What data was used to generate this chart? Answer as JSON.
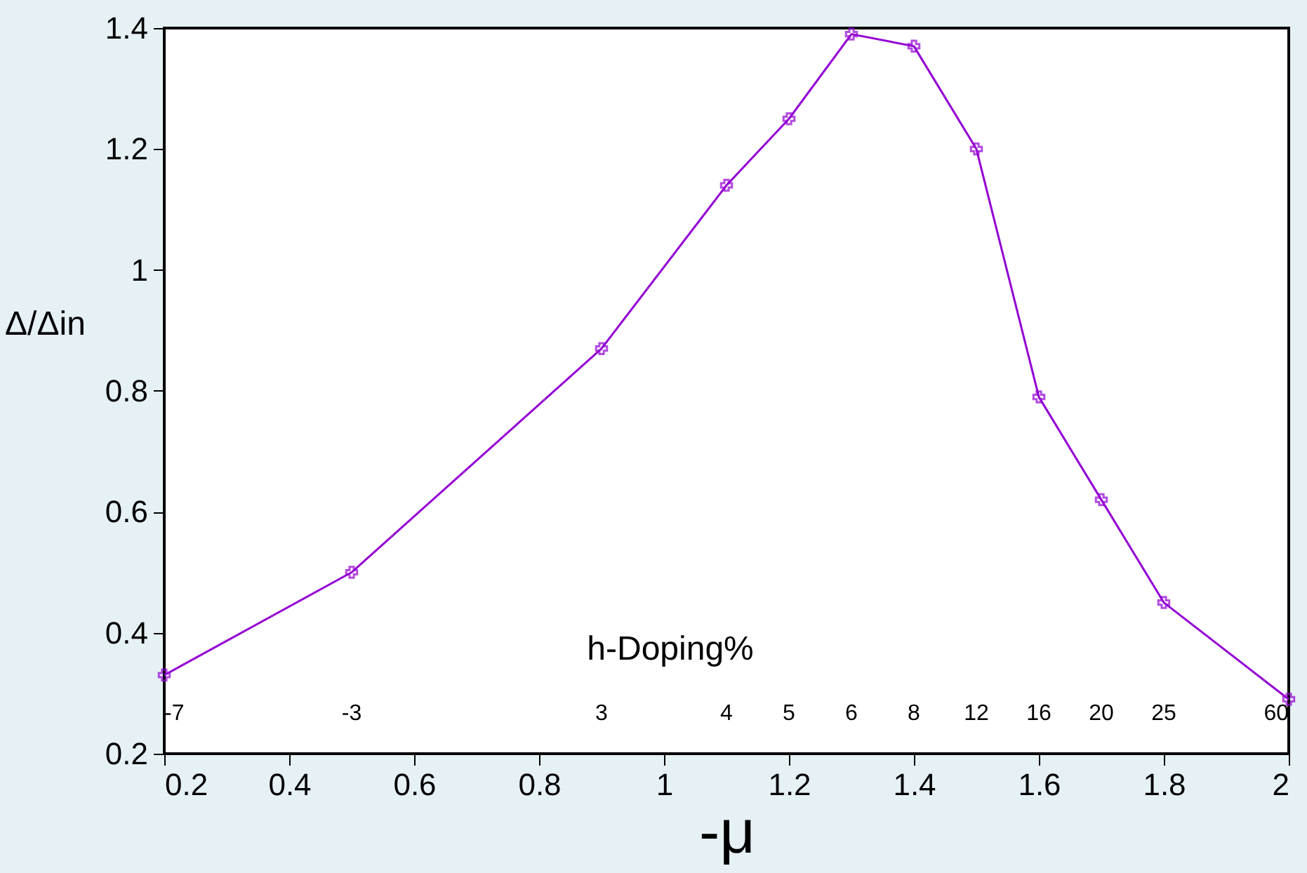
{
  "chart_data": {
    "type": "line",
    "xlabel": "-μ",
    "ylabel": "Δ/Δin",
    "annotations": [
      "h-Doping%",
      "-7",
      "-3",
      "3",
      "4",
      "5",
      "6",
      "8",
      "12",
      "16",
      "20",
      "25",
      "60"
    ],
    "x": [
      0.2,
      0.5,
      0.9,
      1.1,
      1.2,
      1.3,
      1.4,
      1.5,
      1.6,
      1.7,
      1.8,
      2.0
    ],
    "series": [
      {
        "color": "#9400d3",
        "values": [
          0.33,
          0.5,
          0.87,
          1.14,
          1.25,
          1.39,
          1.37,
          1.2,
          0.79,
          0.62,
          0.45,
          0.29
        ]
      }
    ],
    "xlim": [
      0.2,
      2.0
    ],
    "xticks": [
      0.2,
      0.4,
      0.6,
      0.8,
      {
        "value": 1,
        "label": "1"
      },
      1.2,
      1.4,
      1.6,
      1.8,
      {
        "value": 2,
        "label": "2"
      }
    ],
    "ylim": [
      0.2,
      1.4
    ],
    "yticks": [
      0.2,
      0.4,
      0.6,
      0.8,
      {
        "value": 1,
        "label": "1"
      },
      1.2,
      1.4
    ],
    "marker": "cross",
    "line_style": "solid",
    "grid": false
  }
}
